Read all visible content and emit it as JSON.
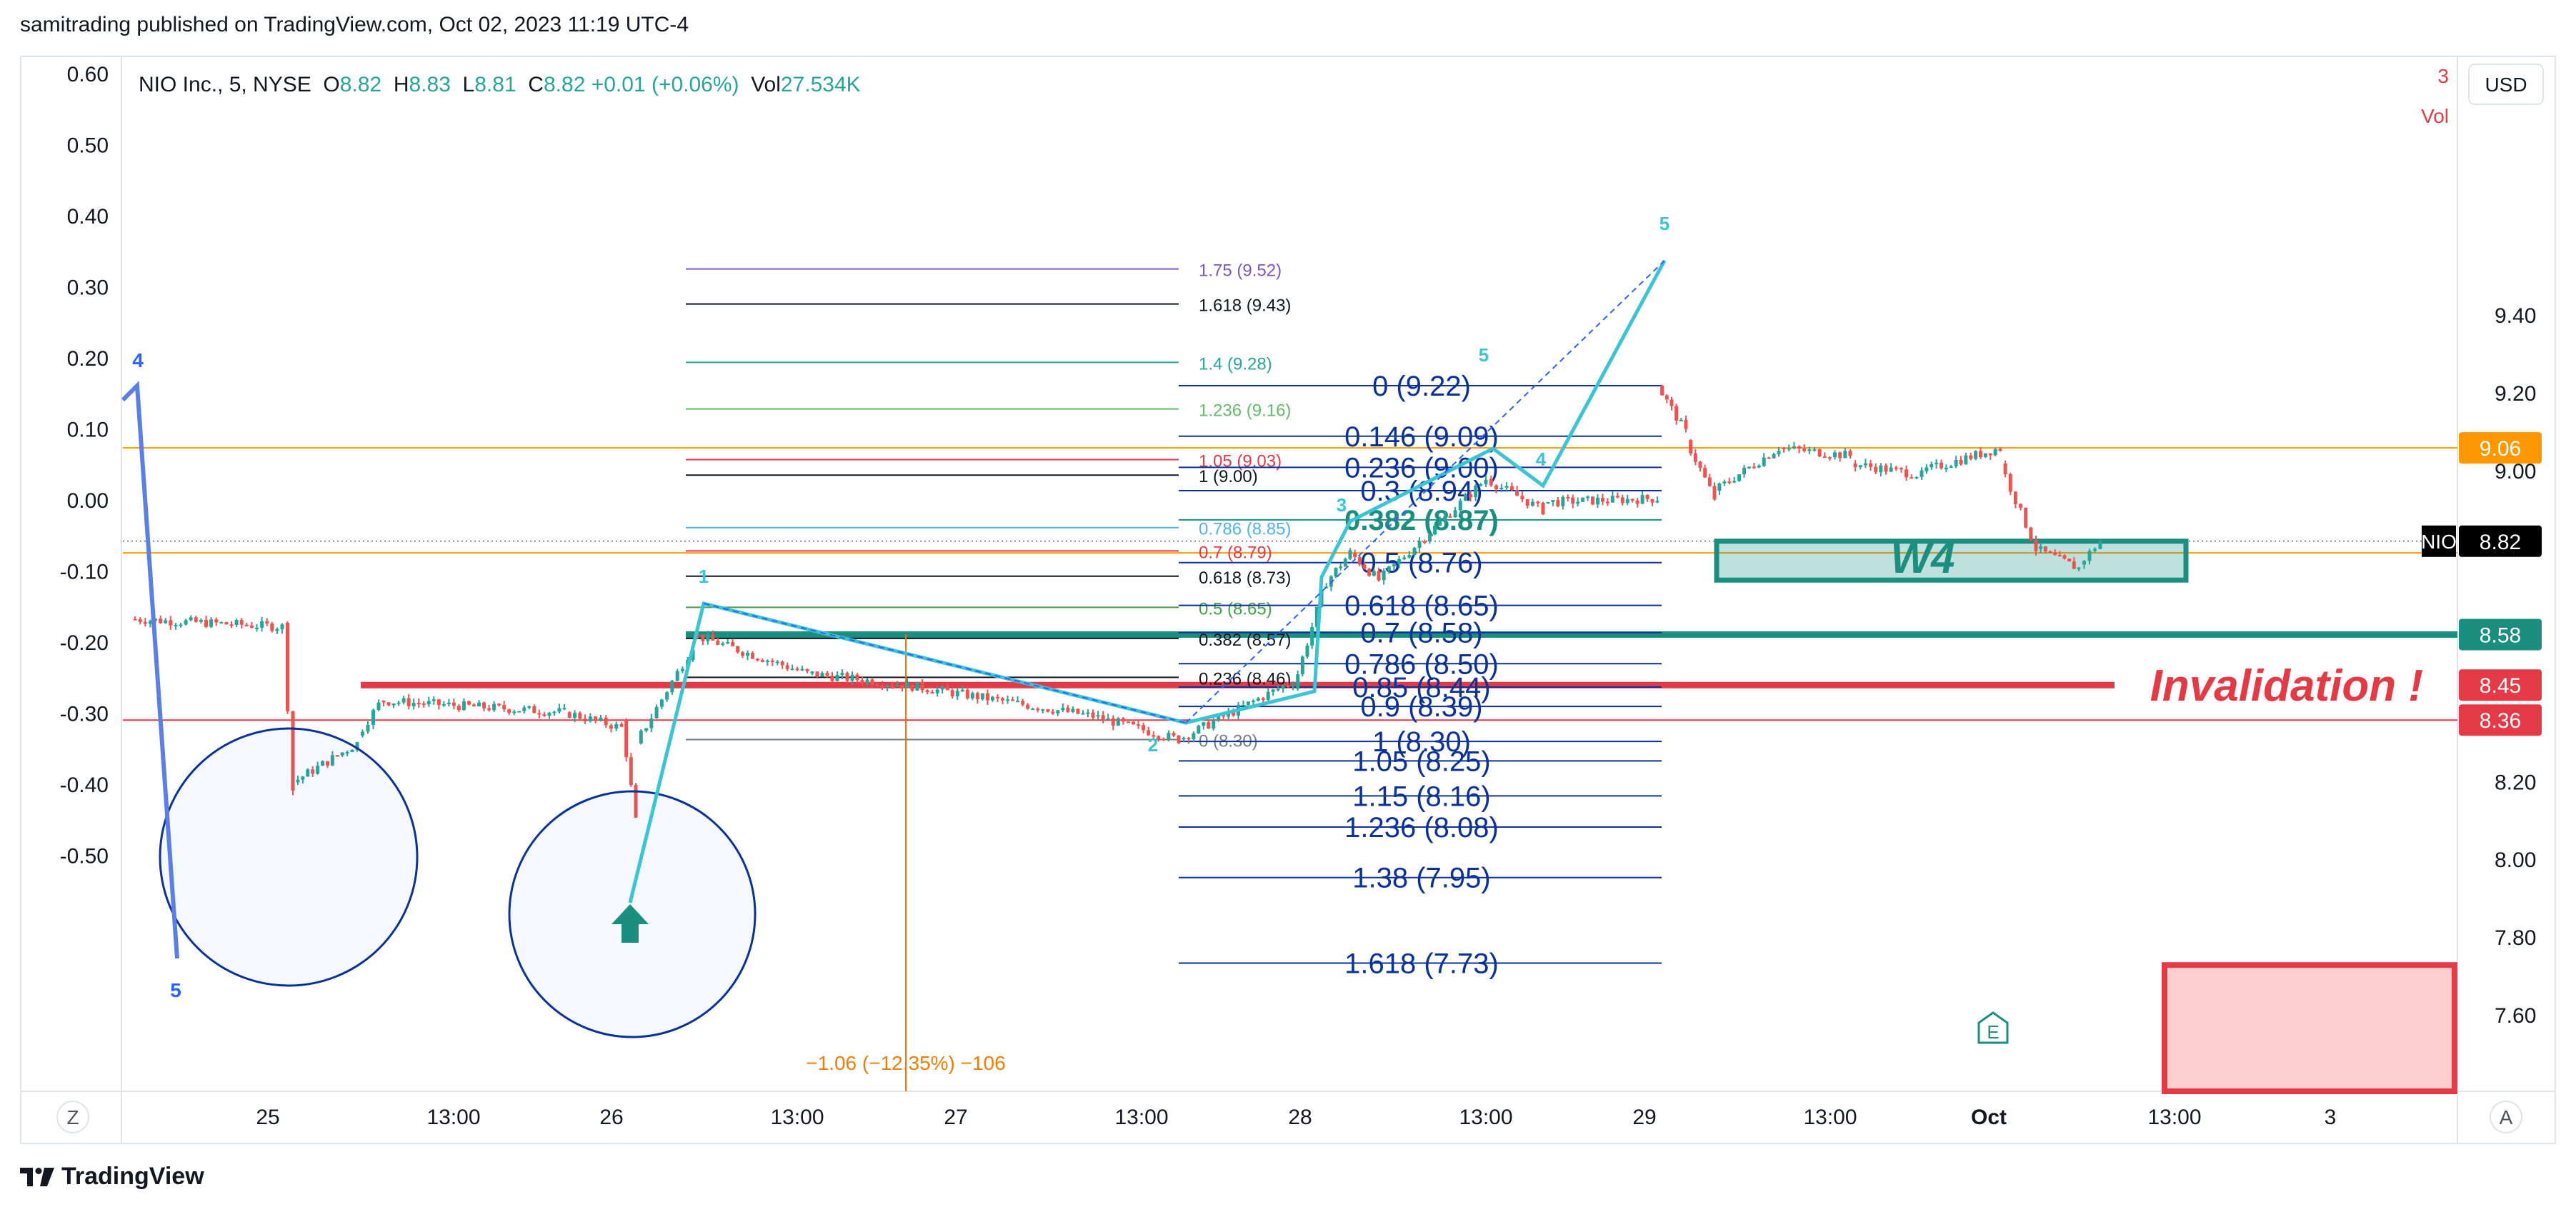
{
  "header": {
    "publisher": "samitrading published on TradingView.com, Oct 02, 2023 11:19 UTC-4"
  },
  "footer": {
    "brand": "TradingView"
  },
  "colors": {
    "up": "#26a69a",
    "down": "#ef5350",
    "teal_line": "#1a8f80",
    "red_line": "#e53946",
    "orange_line": "#ff9800",
    "cyan_wave": "#39c5d4",
    "navy_text": "#0c3299",
    "blue_wave": "#5b7fe8"
  },
  "chart_data": {
    "type": "candlestick",
    "symbol_line": {
      "name": "NIO Inc., 5, NYSE",
      "o_label": "O",
      "o": "8.82",
      "h_label": "H",
      "h": "8.83",
      "l_label": "L",
      "l": "8.81",
      "c_label": "C",
      "c": "8.82",
      "change": "+0.01 (+0.06%)",
      "vol_label": "Vol",
      "vol": "27.534K"
    },
    "currency": "USD",
    "right_axis": {
      "min": 7.6,
      "max": 9.6,
      "ticks": [
        "9.40",
        "9.20",
        "9.00",
        "8.20",
        "8.00",
        "7.80",
        "7.60"
      ]
    },
    "left_axis": {
      "min": -0.6,
      "max": 0.6,
      "ticks": [
        "0.60",
        "0.50",
        "0.40",
        "0.30",
        "0.20",
        "0.10",
        "0.00",
        "-0.10",
        "-0.20",
        "-0.30",
        "-0.40",
        "-0.50"
      ]
    },
    "x_labels": [
      "25",
      "13:00",
      "26",
      "13:00",
      "27",
      "13:00",
      "28",
      "13:00",
      "29",
      "13:00",
      "Oct",
      "13:00",
      "3"
    ],
    "price_tags": [
      {
        "value": "9.06",
        "price": 9.06,
        "color": "#ff9800"
      },
      {
        "value": "NIO",
        "price": 8.82,
        "color": "#000000",
        "is_symbol": true
      },
      {
        "value": "8.82",
        "price": 8.82,
        "color": "#000000"
      },
      {
        "value": "8.58",
        "price": 8.58,
        "color": "#1a8f80"
      },
      {
        "value": "8.45",
        "price": 8.45,
        "color": "#e53946"
      },
      {
        "value": "8.36",
        "price": 8.36,
        "color": "#e53946"
      }
    ],
    "horizontal_lines": [
      {
        "price": 9.06,
        "color": "#ff9800",
        "width": 2
      },
      {
        "price": 8.79,
        "color": "#ff9800",
        "width": 2
      },
      {
        "price": 8.36,
        "color": "#e53946",
        "width": 2
      },
      {
        "price": 8.82,
        "color": "#131722",
        "width": 1,
        "dotted": true
      }
    ],
    "zones": [
      {
        "label": "W4",
        "price_top": 8.82,
        "price_bottom": 8.72,
        "color": "#1a8f80"
      }
    ],
    "key_levels": [
      {
        "price": 8.58,
        "color": "#1a8f80"
      },
      {
        "price": 8.45,
        "color": "#e53946",
        "label": "Invalidation !"
      }
    ],
    "fib_small": [
      {
        "label": "1.75 (9.52)",
        "price": 9.52,
        "color": "#7e57c2"
      },
      {
        "label": "1.618 (9.43)",
        "price": 9.43,
        "color": "#131722"
      },
      {
        "label": "1.4 (9.28)",
        "price": 9.28,
        "color": "#26a69a"
      },
      {
        "label": "1.236 (9.16)",
        "price": 9.16,
        "color": "#66bb6a"
      },
      {
        "label": "1.05 (9.03)",
        "price": 9.03,
        "color": "#e53946"
      },
      {
        "label": "1 (9.00)",
        "price": 8.99,
        "color": "#131722"
      },
      {
        "label": "0.786 (8.85)",
        "price": 8.855,
        "color": "#4fb3e8"
      },
      {
        "label": "0.7 (8.79)",
        "price": 8.795,
        "color": "#e53946"
      },
      {
        "label": "0.618 (8.73)",
        "price": 8.73,
        "color": "#131722"
      },
      {
        "label": "0.5 (8.65)",
        "price": 8.65,
        "color": "#43a047"
      },
      {
        "label": "0.382 (8.57)",
        "price": 8.57,
        "color": "#131722"
      },
      {
        "label": "0.236 (8.46)",
        "price": 8.47,
        "color": "#131722"
      },
      {
        "label": "0 (8.30)",
        "price": 8.31,
        "color": "#787b86"
      }
    ],
    "fib_large": [
      {
        "label": "0 (9.22)",
        "price": 9.22,
        "color": "#0c3299"
      },
      {
        "label": "0.146 (9.09)",
        "price": 9.09,
        "color": "#0c3299"
      },
      {
        "label": "0.236 (9.00)",
        "price": 9.01,
        "color": "#0c3299"
      },
      {
        "label": "0.3 (8.94)",
        "price": 8.95,
        "color": "#0c3299"
      },
      {
        "label": "0.382 (8.87)",
        "price": 8.875,
        "color": "#1a8f80"
      },
      {
        "label": "0.5 (8.76)",
        "price": 8.765,
        "color": "#0c3299"
      },
      {
        "label": "0.618 (8.65)",
        "price": 8.655,
        "color": "#0c3299"
      },
      {
        "label": "0.7 (8.58)",
        "price": 8.585,
        "color": "#0c3299"
      },
      {
        "label": "0.786 (8.50)",
        "price": 8.505,
        "color": "#0c3299"
      },
      {
        "label": "0.85 (8.44)",
        "price": 8.445,
        "color": "#0c3299"
      },
      {
        "label": "0.9 (8.39)",
        "price": 8.395,
        "color": "#0c3299"
      },
      {
        "label": "1 (8.30)",
        "price": 8.305,
        "color": "#0c3299"
      },
      {
        "label": "1.05 (8.25)",
        "price": 8.255,
        "color": "#0c3299"
      },
      {
        "label": "1.15 (8.16)",
        "price": 8.165,
        "color": "#0c3299"
      },
      {
        "label": "1.236 (8.08)",
        "price": 8.085,
        "color": "#0c3299"
      },
      {
        "label": "1.38 (7.95)",
        "price": 7.955,
        "color": "#0c3299"
      },
      {
        "label": "1.618 (7.73)",
        "price": 7.735,
        "color": "#0c3299"
      }
    ],
    "wave_labels": [
      "4",
      "5",
      "1",
      "2",
      "3",
      "4",
      "5",
      "5"
    ],
    "measure_label": "−1.06 (−12.35%) −106",
    "earnings_marker": "E",
    "corner_z": "Z",
    "corner_a": "A",
    "truncated_right": [
      "3",
      "Vol"
    ]
  }
}
